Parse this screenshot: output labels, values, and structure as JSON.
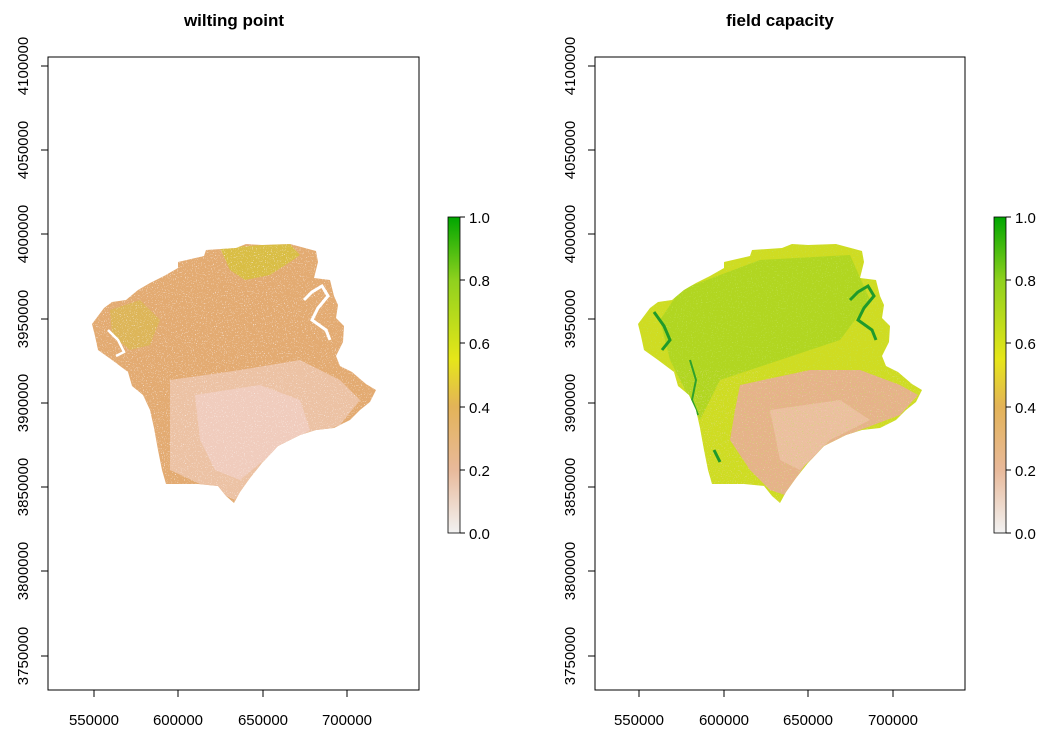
{
  "panels": [
    {
      "title": "wilting point",
      "x_ticks": [
        "550000",
        "600000",
        "650000",
        "700000"
      ],
      "y_ticks": [
        "3750000",
        "3800000",
        "3850000",
        "3900000",
        "3950000",
        "4000000",
        "4050000",
        "4100000"
      ],
      "legend_ticks": [
        "0.0",
        "0.2",
        "0.4",
        "0.6",
        "0.8",
        "1.0"
      ]
    },
    {
      "title": "field capacity",
      "x_ticks": [
        "550000",
        "600000",
        "650000",
        "700000"
      ],
      "y_ticks": [
        "3750000",
        "3800000",
        "3850000",
        "3900000",
        "3950000",
        "4000000",
        "4050000",
        "4100000"
      ],
      "legend_ticks": [
        "0.0",
        "0.2",
        "0.4",
        "0.6",
        "0.8",
        "1.0"
      ]
    }
  ],
  "chart_data": [
    {
      "type": "heatmap",
      "title": "wilting point",
      "xlim": [
        525000,
        745000
      ],
      "ylim": [
        3730000,
        4110000
      ],
      "x_ticks": [
        550000,
        600000,
        650000,
        700000
      ],
      "y_ticks": [
        3750000,
        3800000,
        3850000,
        3900000,
        3950000,
        4000000,
        4050000,
        4100000
      ],
      "color_scale": {
        "min": 0.0,
        "max": 1.0,
        "ticks": [
          0.0,
          0.2,
          0.4,
          0.6,
          0.8,
          1.0
        ],
        "colors": [
          "#f2f2f2",
          "#e8b99a",
          "#e3b358",
          "#e6e619",
          "#8fd11e",
          "#00a600"
        ]
      },
      "dominant_value_range": [
        0.15,
        0.45
      ],
      "dominant_colors": [
        "#e3a870",
        "#edbd9e",
        "#d9cc2a"
      ]
    },
    {
      "type": "heatmap",
      "title": "field capacity",
      "xlim": [
        525000,
        745000
      ],
      "ylim": [
        3730000,
        4110000
      ],
      "x_ticks": [
        550000,
        600000,
        650000,
        700000
      ],
      "y_ticks": [
        3750000,
        3800000,
        3850000,
        3900000,
        3950000,
        4000000,
        4050000,
        4100000
      ],
      "color_scale": {
        "min": 0.0,
        "max": 1.0,
        "ticks": [
          0.0,
          0.2,
          0.4,
          0.6,
          0.8,
          1.0
        ],
        "colors": [
          "#f2f2f2",
          "#e8b99a",
          "#e3b358",
          "#e6e619",
          "#8fd11e",
          "#00a600"
        ]
      },
      "dominant_value_range": [
        0.25,
        0.75
      ],
      "dominant_colors": [
        "#c4dc1e",
        "#a8d424",
        "#e3a870",
        "#1f9e2a"
      ]
    }
  ]
}
